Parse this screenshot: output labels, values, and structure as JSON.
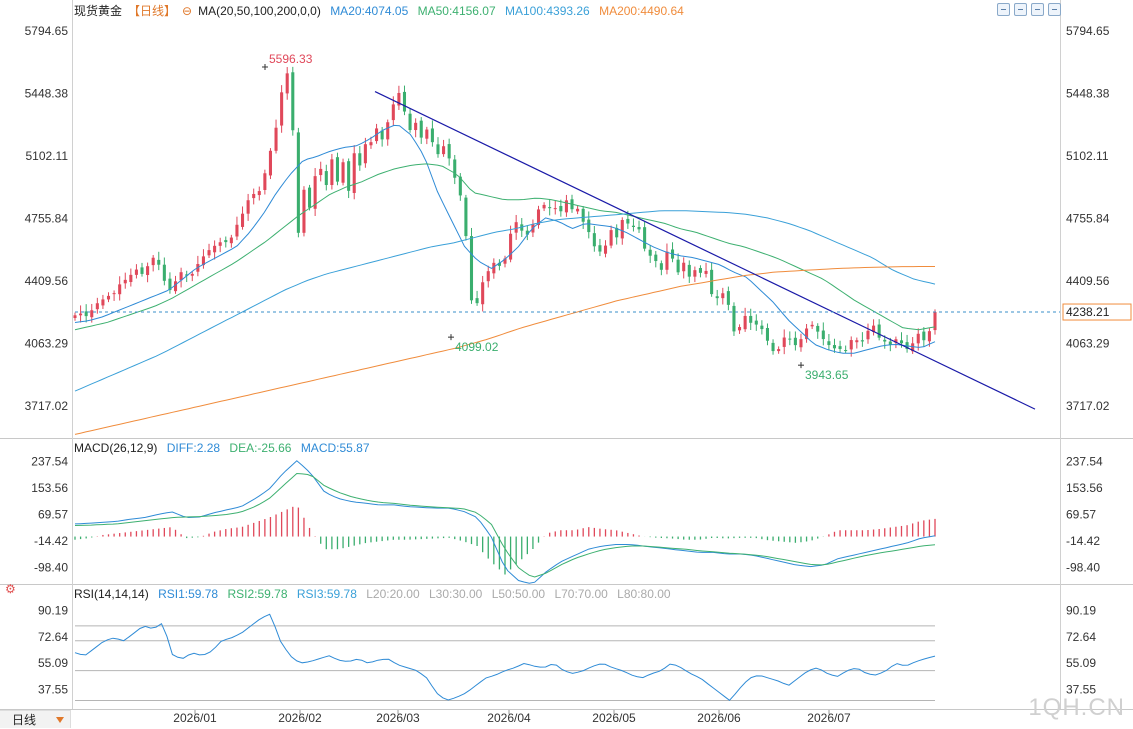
{
  "header": {
    "instrument": "现货黄金",
    "period": "【日线】",
    "ma_label": "MA(20,50,100,200,0,0)",
    "ma20": "MA20:4074.05",
    "ma50": "MA50:4156.07",
    "ma100": "MA100:4393.26",
    "ma200": "MA200:4490.64"
  },
  "macd_header": {
    "title": "MACD(26,12,9)",
    "diff": "DIFF:2.28",
    "dea": "DEA:-25.66",
    "macd": "MACD:55.87"
  },
  "rsi_header": {
    "title": "RSI(14,14,14)",
    "rsi1": "RSI1:59.78",
    "rsi2": "RSI2:59.78",
    "rsi3": "RSI3:59.78",
    "l20": "L20:20.00",
    "l30": "L30:30.00",
    "l50": "L50:50.00",
    "l70": "L70:70.00",
    "l80": "L80:80.00"
  },
  "period_tab": "日线",
  "watermark": "1QH.CN",
  "colors": {
    "up": "#e0485a",
    "down": "#3aae6e",
    "ma20": "#2f8bd6",
    "ma50": "#3db070",
    "ma100": "#3aa0d8",
    "ma200": "#f08c3c",
    "trendline": "#1a1aa8",
    "current": "#f08c3c"
  },
  "chart_data": [
    {
      "type": "candlestick",
      "ylim": [
        3540,
        5890
      ],
      "y_ticks": [
        "5794.65",
        "5448.38",
        "5102.11",
        "4755.84",
        "4409.56",
        "4063.29",
        "3717.02"
      ],
      "x_labels": [
        "2026/01",
        "2026/02",
        "2026/03",
        "2026/04",
        "2026/05",
        "2026/06",
        "2026/07"
      ],
      "current_price": 4238.21,
      "current_label": "4238.21",
      "annotations": [
        {
          "label": "5596.33",
          "value": 5596.33,
          "kind": "high"
        },
        {
          "label": "4099.02",
          "value": 4099.02,
          "kind": "low"
        },
        {
          "label": "3943.65",
          "value": 3943.65,
          "kind": "low"
        }
      ],
      "close_path": [
        4220,
        4230,
        4215,
        4250,
        4290,
        4310,
        4330,
        4345,
        4400,
        4420,
        4450,
        4480,
        4440,
        4510,
        4550,
        4480,
        4380,
        4350,
        4440,
        4470,
        4420,
        4470,
        4530,
        4560,
        4600,
        4610,
        4640,
        4610,
        4700,
        4750,
        4830,
        4900,
        4880,
        4960,
        5100,
        5200,
        5400,
        5600,
        5450,
        4600,
        4950,
        4780,
        4980,
        5050,
        4920,
        5100,
        4950,
        5080,
        4900,
        5120,
        5050,
        5170,
        5180,
        5260,
        5190,
        5300,
        5400,
        5460,
        5330,
        5230,
        5300,
        5180,
        5270,
        5150,
        5100,
        5180,
        5050,
        4950,
        4850,
        4550,
        4150,
        4380,
        4420,
        4500,
        4520,
        4470,
        4600,
        4750,
        4720,
        4650,
        4690,
        4780,
        4850,
        4800,
        4840,
        4760,
        4880,
        4800,
        4830,
        4750,
        4700,
        4610,
        4570,
        4590,
        4700,
        4640,
        4750,
        4730,
        4710,
        4700,
        4590,
        4550,
        4520,
        4470,
        4580,
        4530,
        4450,
        4520,
        4420,
        4480,
        4450,
        4470,
        4300,
        4320,
        4350,
        4250,
        4080,
        4190,
        4230,
        4150,
        4180,
        4120,
        4050,
        4000,
        4060,
        4130,
        4050,
        4060,
        4120,
        4180,
        4150,
        4100,
        4070,
        4030,
        4050,
        4000,
        4080,
        4090,
        4060,
        4120,
        4180,
        4100,
        4080,
        4050,
        4090,
        4070,
        4030,
        4060,
        4120,
        4080,
        4130,
        4238
      ],
      "series": [
        {
          "name": "MA20",
          "path": [
            4180,
            4190,
            4210,
            4240,
            4270,
            4300,
            4330,
            4360,
            4420,
            4480,
            4520,
            4560,
            4600,
            4680,
            4780,
            4900,
            5000,
            5080,
            5100,
            5130,
            5150,
            5160,
            5200,
            5250,
            5280,
            5220,
            5100,
            4900,
            4750,
            4600,
            4520,
            4480,
            4530,
            4600,
            4700,
            4760,
            4740,
            4700,
            4730,
            4720,
            4710,
            4680,
            4640,
            4600,
            4570,
            4550,
            4540,
            4520,
            4500,
            4460,
            4430,
            4360,
            4290,
            4200,
            4130,
            4060,
            4030,
            4010,
            4010,
            4030,
            4050,
            4060,
            4050,
            4040,
            4074
          ]
        },
        {
          "name": "MA50",
          "path": [
            4140,
            4160,
            4180,
            4210,
            4240,
            4270,
            4310,
            4360,
            4410,
            4460,
            4510,
            4570,
            4630,
            4700,
            4770,
            4830,
            4890,
            4930,
            4960,
            5000,
            5030,
            5050,
            5060,
            5050,
            5000,
            4900,
            4880,
            4860,
            4860,
            4870,
            4860,
            4840,
            4820,
            4800,
            4790,
            4770,
            4750,
            4730,
            4700,
            4680,
            4650,
            4620,
            4600,
            4570,
            4540,
            4500,
            4460,
            4420,
            4360,
            4300,
            4250,
            4200,
            4150,
            4140,
            4156
          ]
        },
        {
          "name": "MA100",
          "path": [
            3800,
            3850,
            3900,
            3950,
            4000,
            4060,
            4120,
            4180,
            4240,
            4300,
            4360,
            4410,
            4450,
            4480,
            4510,
            4540,
            4570,
            4600,
            4620,
            4650,
            4680,
            4700,
            4730,
            4750,
            4760,
            4770,
            4780,
            4790,
            4800,
            4800,
            4795,
            4790,
            4780,
            4760,
            4730,
            4690,
            4640,
            4590,
            4540,
            4470,
            4420,
            4393
          ]
        },
        {
          "name": "MA200",
          "path": [
            3560,
            3600,
            3640,
            3680,
            3720,
            3760,
            3800,
            3840,
            3880,
            3920,
            3960,
            4000,
            4040,
            4090,
            4150,
            4200,
            4250,
            4300,
            4340,
            4380,
            4410,
            4440,
            4460,
            4470,
            4480,
            4486,
            4490,
            4490.64
          ]
        },
        {
          "name": "trendline",
          "path": [
            5460,
            3700
          ]
        }
      ]
    },
    {
      "type": "bar+line",
      "title": "MACD(26,12,9)",
      "ylim": [
        -150,
        280
      ],
      "y_ticks": [
        "237.54",
        "153.56",
        "69.57",
        "-14.42",
        "-98.40"
      ],
      "series": [
        {
          "name": "DIFF",
          "path": [
            40,
            42,
            45,
            48,
            55,
            60,
            70,
            78,
            60,
            62,
            75,
            85,
            95,
            120,
            150,
            200,
            240,
            200,
            140,
            120,
            110,
            105,
            100,
            100,
            95,
            92,
            90,
            90,
            80,
            60,
            0,
            -100,
            -140,
            -150,
            -110,
            -80,
            -60,
            -40,
            -30,
            -25,
            -25,
            -30,
            -35,
            -40,
            -45,
            -50,
            -50,
            -55,
            -55,
            -60,
            -70,
            -80,
            -90,
            -95,
            -90,
            -70,
            -60,
            -50,
            -40,
            -30,
            -20,
            -5,
            2.28
          ]
        },
        {
          "name": "DEA",
          "path": [
            35,
            36,
            38,
            40,
            45,
            50,
            55,
            60,
            62,
            63,
            66,
            70,
            78,
            95,
            120,
            160,
            200,
            195,
            160,
            140,
            125,
            115,
            108,
            105,
            100,
            96,
            93,
            91,
            88,
            75,
            40,
            -40,
            -100,
            -130,
            -115,
            -90,
            -70,
            -55,
            -42,
            -35,
            -30,
            -30,
            -33,
            -37,
            -40,
            -45,
            -48,
            -52,
            -55,
            -58,
            -64,
            -72,
            -80,
            -88,
            -90,
            -80,
            -70,
            -60,
            -52,
            -45,
            -38,
            -30,
            -25.66
          ]
        },
        {
          "name": "MACD",
          "path": [
            -10,
            -5,
            5,
            10,
            15,
            20,
            25,
            30,
            -5,
            -2,
            15,
            25,
            30,
            45,
            60,
            80,
            100,
            20,
            -40,
            -40,
            -30,
            -20,
            -15,
            -10,
            -10,
            -8,
            -6,
            -4,
            -15,
            -30,
            -80,
            -120,
            -80,
            -40,
            10,
            20,
            20,
            30,
            24,
            20,
            10,
            0,
            -4,
            -6,
            -10,
            -10,
            -4,
            -6,
            -4,
            -4,
            -12,
            -16,
            -20,
            -14,
            0,
            20,
            20,
            20,
            24,
            30,
            36,
            50,
            55.87
          ]
        }
      ]
    },
    {
      "type": "line",
      "title": "RSI(14,14,14)",
      "ylim": [
        25,
        100
      ],
      "y_ticks": [
        "90.19",
        "72.64",
        "55.09",
        "37.55"
      ],
      "levels": [
        20,
        30,
        50,
        70,
        80
      ],
      "series": [
        {
          "name": "RSI1",
          "path": [
            62,
            60,
            65,
            70,
            72,
            70,
            75,
            80,
            78,
            82,
            60,
            58,
            62,
            60,
            63,
            70,
            72,
            75,
            80,
            85,
            88,
            70,
            60,
            55,
            56,
            58,
            60,
            57,
            56,
            58,
            55,
            57,
            58,
            54,
            52,
            50,
            45,
            35,
            30,
            32,
            35,
            40,
            45,
            47,
            50,
            52,
            55,
            53,
            52,
            55,
            50,
            48,
            50,
            53,
            55,
            52,
            50,
            47,
            45,
            48,
            50,
            55,
            52,
            48,
            45,
            40,
            35,
            30,
            38,
            45,
            47,
            45,
            43,
            40,
            45,
            50,
            52,
            48,
            46,
            50,
            52,
            48,
            47,
            50,
            55,
            53,
            56,
            58,
            59.78
          ]
        },
        {
          "name": "RSI2",
          "path": [
            62,
            60,
            65,
            70,
            72,
            70,
            75,
            80,
            78,
            82,
            60,
            58,
            62,
            60,
            63,
            70,
            72,
            75,
            80,
            85,
            88,
            70,
            60,
            55,
            56,
            58,
            60,
            57,
            56,
            58,
            55,
            57,
            58,
            54,
            52,
            50,
            45,
            35,
            30,
            32,
            35,
            40,
            45,
            47,
            50,
            52,
            55,
            53,
            52,
            55,
            50,
            48,
            50,
            53,
            55,
            52,
            50,
            47,
            45,
            48,
            50,
            55,
            52,
            48,
            45,
            40,
            35,
            30,
            38,
            45,
            47,
            45,
            43,
            40,
            45,
            50,
            52,
            48,
            46,
            50,
            52,
            48,
            47,
            50,
            55,
            53,
            56,
            58,
            59.78
          ]
        },
        {
          "name": "RSI3",
          "path": [
            62,
            60,
            65,
            70,
            72,
            70,
            75,
            80,
            78,
            82,
            60,
            58,
            62,
            60,
            63,
            70,
            72,
            75,
            80,
            85,
            88,
            70,
            60,
            55,
            56,
            58,
            60,
            57,
            56,
            58,
            55,
            57,
            58,
            54,
            52,
            50,
            45,
            35,
            30,
            32,
            35,
            40,
            45,
            47,
            50,
            52,
            55,
            53,
            52,
            55,
            50,
            48,
            50,
            53,
            55,
            52,
            50,
            47,
            45,
            48,
            50,
            55,
            52,
            48,
            45,
            40,
            35,
            30,
            38,
            45,
            47,
            45,
            43,
            40,
            45,
            50,
            52,
            48,
            46,
            50,
            52,
            48,
            47,
            50,
            55,
            53,
            56,
            58,
            59.78
          ]
        }
      ]
    }
  ]
}
